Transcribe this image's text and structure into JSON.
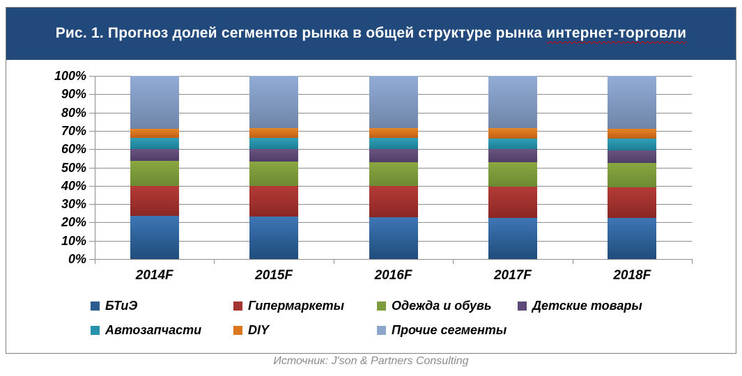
{
  "figure": {
    "title": {
      "prefix": "Рис. 1. Прогноз долей сегментов рынка в общей структуре рынка ",
      "flagged_word": "интернет-торговли"
    },
    "source": "Источник: J'son & Partners Consulting"
  },
  "colors": {
    "header_bg": "#21497B",
    "title_text": "#FFFFFF",
    "spellcheck_underline": "#D40000",
    "frame_border": "#808080",
    "grid_line": "#8C8C8C",
    "axis_text": "#000000",
    "source_text": "#8C8C8C"
  },
  "chart_data": {
    "type": "bar",
    "variant": "stacked-100-percent",
    "title": "Рис. 1. Прогноз долей сегментов рынка в общей структуре рынка интернет-торговли",
    "categories": [
      "2014F",
      "2015F",
      "2016F",
      "2017F",
      "2018F"
    ],
    "y_axis": {
      "min": 0,
      "max": 100,
      "step": 10,
      "format": "percent",
      "tick_labels": [
        "0%",
        "10%",
        "20%",
        "30%",
        "40%",
        "50%",
        "60%",
        "70%",
        "80%",
        "90%",
        "100%"
      ]
    },
    "grid": true,
    "legend_position": "bottom",
    "series": [
      {
        "name": "БТиЭ",
        "color": "#2C5C8F",
        "gradient": [
          "#3E76B5",
          "#1F4C7C"
        ],
        "values": [
          23.5,
          23.3,
          23.0,
          22.5,
          22.3
        ]
      },
      {
        "name": "Гипермаркеты",
        "color": "#A33431",
        "gradient": [
          "#B43B37",
          "#8B2724"
        ],
        "values": [
          16.5,
          16.7,
          17.0,
          17.0,
          17.0
        ]
      },
      {
        "name": "Одежда и обувь",
        "color": "#7D9C3E",
        "gradient": [
          "#8AA742",
          "#6C8A31"
        ],
        "values": [
          13.5,
          13.4,
          13.0,
          13.4,
          13.1
        ]
      },
      {
        "name": "Детские товары",
        "color": "#5D4A7B",
        "gradient": [
          "#6A547F",
          "#4F3D69"
        ],
        "values": [
          6.5,
          6.8,
          7.0,
          7.0,
          6.8
        ]
      },
      {
        "name": "Автозапчасти",
        "color": "#2793AB",
        "gradient": [
          "#31A0B8",
          "#1C7E94"
        ],
        "values": [
          6.0,
          6.0,
          6.0,
          6.0,
          6.5
        ]
      },
      {
        "name": "DIY",
        "color": "#DC761E",
        "gradient": [
          "#E58426",
          "#C05F14"
        ],
        "values": [
          5.0,
          5.1,
          5.5,
          5.5,
          5.5
        ]
      },
      {
        "name": "Прочие сегменты",
        "color": "#8CA5CB",
        "gradient": [
          "#92ACD6",
          "#6F85A8"
        ],
        "values": [
          29.0,
          28.7,
          28.5,
          28.6,
          28.8
        ]
      }
    ]
  }
}
